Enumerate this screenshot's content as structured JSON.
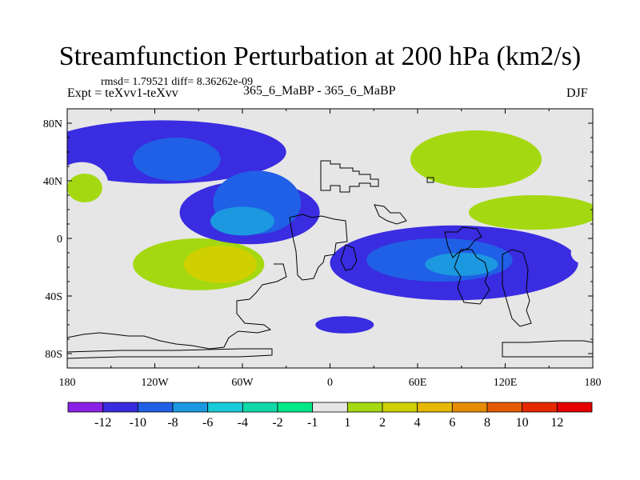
{
  "title": "Streamfunction Perturbation at 200 hPa (km2/s)",
  "stats_line": "rmsd= 1.79521 diff= 8.36262e-09",
  "left_label": "Expt = teXvv1-teXvv",
  "center_label": "365_6_MaBP - 365_6_MaBP",
  "right_label": "DJF",
  "chart_data": {
    "type": "contour_map",
    "title": "Streamfunction Perturbation at 200 hPa (km2/s)",
    "x_ticks": [
      {
        "value": -180,
        "label": "180"
      },
      {
        "value": -120,
        "label": "120W"
      },
      {
        "value": -60,
        "label": "60W"
      },
      {
        "value": 0,
        "label": "0"
      },
      {
        "value": 60,
        "label": "60E"
      },
      {
        "value": 120,
        "label": "120E"
      },
      {
        "value": 180,
        "label": "180"
      }
    ],
    "y_ticks": [
      {
        "value": 80,
        "label": "80N"
      },
      {
        "value": 40,
        "label": "40N"
      },
      {
        "value": 0,
        "label": "0"
      },
      {
        "value": -40,
        "label": "40S"
      },
      {
        "value": -80,
        "label": "80S"
      }
    ],
    "xlim": [
      -180,
      180
    ],
    "ylim": [
      -90,
      90
    ],
    "colorbar": {
      "colors": [
        "#8a22e6",
        "#3a2ce0",
        "#2060e6",
        "#1c98e0",
        "#18ccd8",
        "#10d8a8",
        "#00e888",
        "#e6e6e6",
        "#a4d810",
        "#d0d000",
        "#e6b800",
        "#e68c00",
        "#e65a00",
        "#e62a00",
        "#e60000"
      ],
      "labels": [
        "-12",
        "-10",
        "-8",
        "-6",
        "-4",
        "-2",
        "-1",
        "1",
        "2",
        "4",
        "6",
        "8",
        "10",
        "12"
      ]
    },
    "blobs": [
      {
        "lon": -115,
        "lat": 60,
        "rlon": 85,
        "rlat": 22,
        "level": 1
      },
      {
        "lon": -105,
        "lat": 55,
        "rlon": 30,
        "rlat": 15,
        "level": 2
      },
      {
        "lon": 103,
        "lat": 52,
        "rlon": 65,
        "rlat": 30,
        "level": 7
      },
      {
        "lon": 100,
        "lat": 55,
        "rlon": 45,
        "rlat": 20,
        "level": 8
      },
      {
        "lon": 125,
        "lat": 15,
        "rlon": 70,
        "rlat": 18,
        "level": 7
      },
      {
        "lon": 140,
        "lat": 18,
        "rlon": 45,
        "rlat": 12,
        "level": 8
      },
      {
        "lon": -170,
        "lat": 38,
        "rlon": 18,
        "rlat": 15,
        "level": 7
      },
      {
        "lon": -168,
        "lat": 35,
        "rlon": 12,
        "rlat": 10,
        "level": 8
      },
      {
        "lon": -115,
        "lat": -22,
        "rlon": 72,
        "rlat": 24,
        "level": 7
      },
      {
        "lon": -90,
        "lat": -18,
        "rlon": 45,
        "rlat": 18,
        "level": 8
      },
      {
        "lon": -75,
        "lat": -18,
        "rlon": 25,
        "rlat": 13,
        "level": 9
      },
      {
        "lon": -55,
        "lat": 18,
        "rlon": 48,
        "rlat": 22,
        "level": 1
      },
      {
        "lon": -50,
        "lat": 25,
        "rlon": 30,
        "rlat": 22,
        "level": 2
      },
      {
        "lon": -60,
        "lat": 12,
        "rlon": 22,
        "rlat": 10,
        "level": 3
      },
      {
        "lon": 85,
        "lat": -17,
        "rlon": 85,
        "rlat": 26,
        "level": 1
      },
      {
        "lon": 75,
        "lat": -15,
        "rlon": 50,
        "rlat": 15,
        "level": 2
      },
      {
        "lon": 90,
        "lat": -18,
        "rlon": 25,
        "rlat": 8,
        "level": 3
      },
      {
        "lon": 175,
        "lat": -10,
        "rlon": 10,
        "rlat": 8,
        "level": 7
      },
      {
        "lon": 10,
        "lat": -60,
        "rlon": 20,
        "rlat": 6,
        "level": 1
      }
    ]
  }
}
